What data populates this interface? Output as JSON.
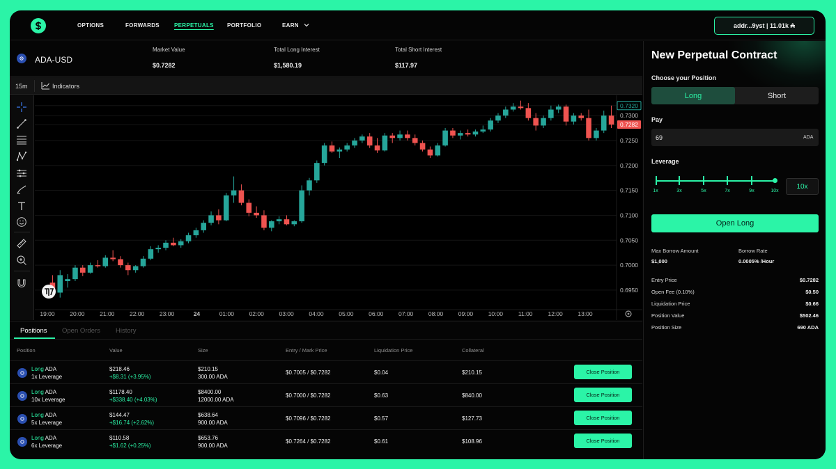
{
  "nav": {
    "items": [
      "OPTIONS",
      "FORWARDS",
      "PERPETUALS",
      "PORTFOLIO",
      "EARN"
    ],
    "active": "PERPETUALS",
    "wallet_label": "addr...9yst | 11.01k ₳"
  },
  "market": {
    "pair": "ADA-USD",
    "stats": [
      {
        "label": "Market Value",
        "value": "$0.7282"
      },
      {
        "label": "Total Long Interest",
        "value": "$1,580.19"
      },
      {
        "label": "Total Short Interest",
        "value": "$117.97"
      }
    ]
  },
  "chart_toolbar": {
    "interval": "15m",
    "indicators_label": "Indicators"
  },
  "chart_data": {
    "type": "candlestick",
    "colors": {
      "up": "#26a69a",
      "down": "#ef5350",
      "background": "#000000",
      "grid": "#141414"
    },
    "y_range": [
      0.6915,
      0.7335
    ],
    "y_ticks": [
      "0.7320",
      "0.7300",
      "0.7282",
      "0.7250",
      "0.7200",
      "0.7150",
      "0.7100",
      "0.7050",
      "0.7000",
      "0.6950"
    ],
    "price_tags": [
      {
        "value": "0.7320",
        "style": "outline"
      },
      {
        "value": "0.7282",
        "style": "red"
      }
    ],
    "x_ticks": [
      "19:00",
      "20:00",
      "21:00",
      "22:00",
      "23:00",
      "24",
      "01:00",
      "02:00",
      "03:00",
      "04:00",
      "05:00",
      "06:00",
      "07:00",
      "08:00",
      "09:00",
      "10:00",
      "11:00",
      "12:00",
      "13:00"
    ],
    "candles": [
      [
        0.6965,
        0.698,
        0.6935,
        0.6945
      ],
      [
        0.6945,
        0.699,
        0.6935,
        0.698
      ],
      [
        0.6968,
        0.6982,
        0.6955,
        0.6972
      ],
      [
        0.6972,
        0.7,
        0.6968,
        0.6995
      ],
      [
        0.6995,
        0.7,
        0.6978,
        0.6985
      ],
      [
        0.6985,
        0.7005,
        0.6983,
        0.7
      ],
      [
        0.7,
        0.701,
        0.6995,
        0.6998
      ],
      [
        0.6998,
        0.702,
        0.6995,
        0.7015
      ],
      [
        0.7015,
        0.703,
        0.7008,
        0.7012
      ],
      [
        0.7012,
        0.7018,
        0.6995,
        0.7
      ],
      [
        0.7,
        0.7005,
        0.698,
        0.699
      ],
      [
        0.699,
        0.7,
        0.6985,
        0.6998
      ],
      [
        0.6998,
        0.7018,
        0.6995,
        0.7013
      ],
      [
        0.7013,
        0.7038,
        0.701,
        0.7032
      ],
      [
        0.7032,
        0.704,
        0.7025,
        0.7035
      ],
      [
        0.7035,
        0.705,
        0.703,
        0.7045
      ],
      [
        0.7045,
        0.7055,
        0.7038,
        0.704
      ],
      [
        0.704,
        0.7052,
        0.7035,
        0.7048
      ],
      [
        0.7048,
        0.7065,
        0.7044,
        0.706
      ],
      [
        0.706,
        0.7075,
        0.7055,
        0.707
      ],
      [
        0.707,
        0.709,
        0.7065,
        0.7085
      ],
      [
        0.7085,
        0.7108,
        0.708,
        0.71
      ],
      [
        0.71,
        0.7112,
        0.7082,
        0.709
      ],
      [
        0.709,
        0.7145,
        0.7088,
        0.714
      ],
      [
        0.714,
        0.7178,
        0.7125,
        0.715
      ],
      [
        0.715,
        0.7162,
        0.712,
        0.7125
      ],
      [
        0.7125,
        0.7132,
        0.7098,
        0.7105
      ],
      [
        0.7105,
        0.7118,
        0.7095,
        0.71
      ],
      [
        0.71,
        0.711,
        0.707,
        0.7075
      ],
      [
        0.7075,
        0.709,
        0.7068,
        0.7088
      ],
      [
        0.7088,
        0.7098,
        0.7082,
        0.7092
      ],
      [
        0.7092,
        0.71,
        0.708,
        0.7082
      ],
      [
        0.7082,
        0.709,
        0.7078,
        0.7088
      ],
      [
        0.7088,
        0.716,
        0.7085,
        0.715
      ],
      [
        0.715,
        0.7175,
        0.714,
        0.717
      ],
      [
        0.717,
        0.721,
        0.7165,
        0.7205
      ],
      [
        0.7205,
        0.7245,
        0.72,
        0.724
      ],
      [
        0.724,
        0.7248,
        0.7225,
        0.7228
      ],
      [
        0.7228,
        0.7236,
        0.7215,
        0.7232
      ],
      [
        0.7232,
        0.7245,
        0.7228,
        0.724
      ],
      [
        0.724,
        0.7255,
        0.7235,
        0.725
      ],
      [
        0.725,
        0.7262,
        0.7245,
        0.7258
      ],
      [
        0.7258,
        0.7265,
        0.7235,
        0.724
      ],
      [
        0.724,
        0.7255,
        0.7225,
        0.723
      ],
      [
        0.723,
        0.7265,
        0.7228,
        0.726
      ],
      [
        0.726,
        0.7265,
        0.7245,
        0.7255
      ],
      [
        0.7255,
        0.727,
        0.725,
        0.7262
      ],
      [
        0.7262,
        0.727,
        0.725,
        0.7255
      ],
      [
        0.7255,
        0.7262,
        0.724,
        0.7245
      ],
      [
        0.7245,
        0.725,
        0.7228,
        0.7232
      ],
      [
        0.7232,
        0.7238,
        0.7215,
        0.722
      ],
      [
        0.722,
        0.7245,
        0.7218,
        0.724
      ],
      [
        0.724,
        0.7275,
        0.7238,
        0.727
      ],
      [
        0.727,
        0.7275,
        0.7255,
        0.726
      ],
      [
        0.726,
        0.727,
        0.7252,
        0.7265
      ],
      [
        0.7265,
        0.7272,
        0.7258,
        0.7262
      ],
      [
        0.7262,
        0.7272,
        0.7258,
        0.7268
      ],
      [
        0.7268,
        0.728,
        0.7265,
        0.7272
      ],
      [
        0.7272,
        0.7295,
        0.7268,
        0.729
      ],
      [
        0.729,
        0.7305,
        0.7285,
        0.73
      ],
      [
        0.73,
        0.7318,
        0.7295,
        0.7312
      ],
      [
        0.7312,
        0.7325,
        0.7308,
        0.7318
      ],
      [
        0.7318,
        0.733,
        0.7312,
        0.7315
      ],
      [
        0.7315,
        0.7325,
        0.729,
        0.7295
      ],
      [
        0.7295,
        0.7305,
        0.727,
        0.728
      ],
      [
        0.728,
        0.73,
        0.7275,
        0.7295
      ],
      [
        0.7295,
        0.732,
        0.729,
        0.7312
      ],
      [
        0.7312,
        0.7322,
        0.7305,
        0.7318
      ],
      [
        0.7318,
        0.7322,
        0.728,
        0.7288
      ],
      [
        0.7288,
        0.7305,
        0.7282,
        0.73
      ],
      [
        0.73,
        0.7305,
        0.729,
        0.7295
      ],
      [
        0.7295,
        0.7312,
        0.725,
        0.7255
      ],
      [
        0.7255,
        0.7275,
        0.725,
        0.727
      ],
      [
        0.727,
        0.731,
        0.7265,
        0.73
      ],
      [
        0.73,
        0.732,
        0.7275,
        0.7282
      ]
    ]
  },
  "positions": {
    "tabs": [
      "Positions",
      "Open Orders",
      "History"
    ],
    "columns": [
      "Position",
      "Value",
      "Size",
      "Entry / Mark Price",
      "Liquidation Price",
      "Collateral"
    ],
    "close_label": "Close Position",
    "rows": [
      {
        "side": "Long",
        "asset": "ADA",
        "leverage": "1x Leverage",
        "value": "$218.46",
        "pnl": "+$8.31 (+3.95%)",
        "size_usd": "$210.15",
        "size_ada": "300.00 ADA",
        "entry_mark": "$0.7005 / $0.7282",
        "liq": "$0.04",
        "collateral": "$210.15"
      },
      {
        "side": "Long",
        "asset": "ADA",
        "leverage": "10x Leverage",
        "value": "$1178.40",
        "pnl": "+$338.40 (+4.03%)",
        "size_usd": "$8400.00",
        "size_ada": "12000.00 ADA",
        "entry_mark": "$0.7000 / $0.7282",
        "liq": "$0.63",
        "collateral": "$840.00"
      },
      {
        "side": "Long",
        "asset": "ADA",
        "leverage": "5x Leverage",
        "value": "$144.47",
        "pnl": "+$16.74 (+2.62%)",
        "size_usd": "$638.64",
        "size_ada": "900.00 ADA",
        "entry_mark": "$0.7096 / $0.7282",
        "liq": "$0.57",
        "collateral": "$127.73"
      },
      {
        "side": "Long",
        "asset": "ADA",
        "leverage": "6x Leverage",
        "value": "$110.58",
        "pnl": "+$1.62 (+0.25%)",
        "size_usd": "$653.76",
        "size_ada": "900.00 ADA",
        "entry_mark": "$0.7264 / $0.7282",
        "liq": "$0.61",
        "collateral": "$108.96"
      }
    ]
  },
  "panel": {
    "title": "New Perpetual Contract",
    "choose_label": "Choose your Position",
    "long_label": "Long",
    "short_label": "Short",
    "pay_label": "Pay",
    "pay_value": "69",
    "pay_unit": "ADA",
    "leverage_label": "Leverage",
    "leverage_ticks": [
      "1x",
      "3x",
      "5x",
      "7x",
      "9x",
      "10x"
    ],
    "leverage_value": "10x",
    "submit_label": "Open Long",
    "max_borrow_label": "Max Borrow Amount",
    "max_borrow_value": "$1,000",
    "borrow_rate_label": "Borrow Rate",
    "borrow_rate_value": "0.0005% /Hour",
    "details": [
      {
        "label": "Entry Price",
        "value": "$0.7282"
      },
      {
        "label": "Open Fee (0.10%)",
        "value": "$0.50"
      },
      {
        "label": "Liquidation Price",
        "value": "$0.66"
      },
      {
        "label": "Position Value",
        "value": "$502.46"
      },
      {
        "label": "Position Size",
        "value": "690 ADA"
      }
    ]
  }
}
